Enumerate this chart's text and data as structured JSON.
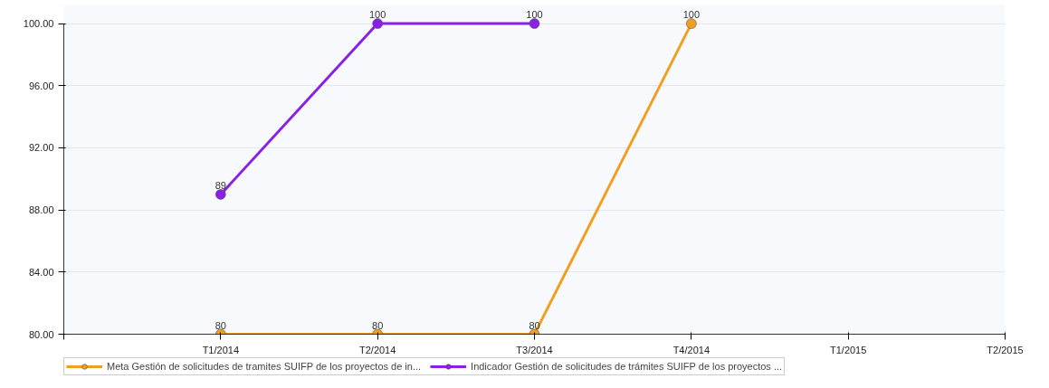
{
  "chart_data": {
    "type": "line",
    "categories": [
      null,
      "T1/2014",
      "T2/2014",
      "T3/2014",
      "T4/2014",
      "T1/2015",
      "T2/2015"
    ],
    "series": [
      {
        "name": "Meta Gestión de solicitudes de tramites SUIFP de los proyectos de in...",
        "color": "#f0a020",
        "values": [
          null,
          80,
          80,
          80,
          100,
          null,
          null
        ]
      },
      {
        "name": "Indicador Gestión de solicitudes de trámites SUIFP de los proyectos ...",
        "color": "#8a1fe6",
        "values": [
          null,
          89,
          100,
          100,
          null,
          null,
          null
        ]
      }
    ],
    "ylim": [
      80,
      100
    ],
    "yticks": [
      {
        "value": 80,
        "label": "80.00"
      },
      {
        "value": 84,
        "label": "84.00"
      },
      {
        "value": 88,
        "label": "88.00"
      },
      {
        "value": 92,
        "label": "92.00"
      },
      {
        "value": 96,
        "label": "96.00"
      },
      {
        "value": 100,
        "label": "100.00"
      }
    ],
    "grid": "y",
    "legend": "bottom",
    "marker": "circle",
    "line_style": "solid",
    "data_labels": true
  }
}
